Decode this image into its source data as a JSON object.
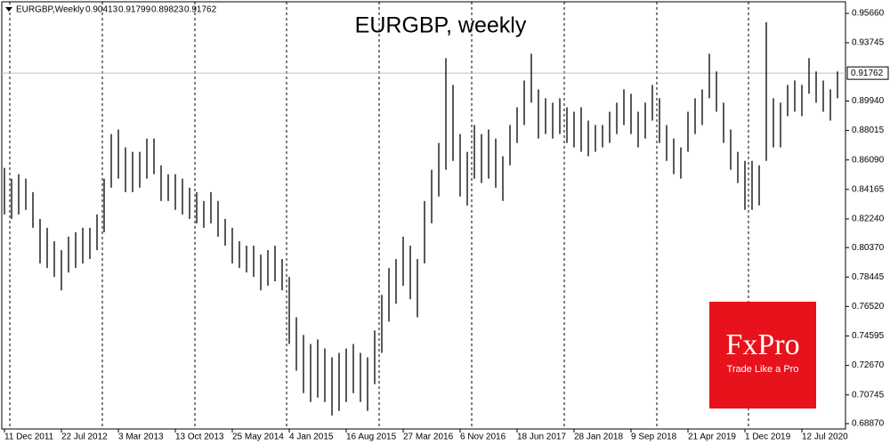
{
  "chart_data": {
    "type": "ohlc",
    "title": "EURGBP, weekly",
    "info": {
      "symbol": "EURGBP,Weekly",
      "open": 0.90413,
      "high": 0.91799,
      "low": 0.89823,
      "close": 0.91762
    },
    "current_price": 0.91762,
    "logo": {
      "name": "FxPro",
      "tagline": "Trade Like a Pro"
    },
    "categories": [
      "11 Dec 2011",
      null,
      null,
      null,
      null,
      null,
      null,
      null,
      "22 Jul 2012",
      null,
      null,
      null,
      null,
      null,
      null,
      null,
      "3 Mar 2013",
      null,
      null,
      null,
      null,
      null,
      null,
      null,
      "13 Oct 2013",
      null,
      null,
      null,
      null,
      null,
      null,
      null,
      "25 May 2014",
      null,
      null,
      null,
      null,
      null,
      null,
      null,
      "4 Jan 2015",
      null,
      null,
      null,
      null,
      null,
      null,
      null,
      "16 Aug 2015",
      null,
      null,
      null,
      null,
      null,
      null,
      null,
      "27 Mar 2016",
      null,
      null,
      null,
      null,
      null,
      null,
      null,
      "6 Nov 2016",
      null,
      null,
      null,
      null,
      null,
      null,
      null,
      "18 Jun 2017",
      null,
      null,
      null,
      null,
      null,
      null,
      null,
      "28 Jan 2018",
      null,
      null,
      null,
      null,
      null,
      null,
      null,
      "9 Sep 2018",
      null,
      null,
      null,
      null,
      null,
      null,
      null,
      "21 Apr 2019",
      null,
      null,
      null,
      null,
      null,
      null,
      null,
      "1 Dec 2019",
      null,
      null,
      null,
      null,
      null,
      null,
      null,
      "12 Jul 2020",
      null,
      null,
      null,
      null,
      null
    ],
    "high": [
      0.8557,
      0.8487,
      0.8516,
      0.8487,
      0.8399,
      0.8224,
      0.8166,
      0.8078,
      0.802,
      0.8108,
      0.8137,
      0.8166,
      0.8166,
      0.8253,
      0.8487,
      0.8778,
      0.8808,
      0.8691,
      0.8662,
      0.8662,
      0.8749,
      0.8749,
      0.8574,
      0.8516,
      0.8516,
      0.8487,
      0.8428,
      0.8399,
      0.8341,
      0.8399,
      0.8341,
      0.8224,
      0.8166,
      0.8078,
      0.8049,
      0.8049,
      0.7991,
      0.802,
      0.8049,
      0.7962,
      0.7845,
      0.7582,
      0.7466,
      0.7407,
      0.7437,
      0.7378,
      0.732,
      0.7349,
      0.7378,
      0.7407,
      0.7349,
      0.732,
      0.7495,
      0.7728,
      0.7903,
      0.7962,
      0.8108,
      0.8049,
      0.7962,
      0.8341,
      0.8545,
      0.872,
      0.9274,
      0.9099,
      0.8778,
      0.8662,
      0.8837,
      0.8778,
      0.8808,
      0.8749,
      0.8633,
      0.8837,
      0.8953,
      0.9128,
      0.9303,
      0.907,
      0.9012,
      0.8983,
      0.9012,
      0.8953,
      0.8924,
      0.8953,
      0.8866,
      0.8837,
      0.8837,
      0.8924,
      0.8983,
      0.907,
      0.9041,
      0.8924,
      0.8983,
      0.9099,
      0.9012,
      0.8837,
      0.8749,
      0.8691,
      0.8924,
      0.9012,
      0.907,
      0.9303,
      0.9187,
      0.8983,
      0.8808,
      0.8662,
      0.8603,
      0.8603,
      0.8574,
      0.9508,
      0.9012,
      0.8983,
      0.9099,
      0.9128,
      0.9099,
      0.9274,
      0.9187,
      0.9128,
      0.907,
      0.9187
    ],
    "low": [
      0.8253,
      0.8224,
      0.8253,
      0.8283,
      0.8166,
      0.7933,
      0.7903,
      0.7845,
      0.7757,
      0.7874,
      0.7903,
      0.7933,
      0.7962,
      0.802,
      0.8137,
      0.8428,
      0.8487,
      0.8399,
      0.8399,
      0.8428,
      0.8487,
      0.8516,
      0.8341,
      0.8341,
      0.8283,
      0.8253,
      0.8224,
      0.8195,
      0.8166,
      0.8195,
      0.8108,
      0.8049,
      0.7933,
      0.7903,
      0.7874,
      0.7845,
      0.7757,
      0.7787,
      0.7816,
      0.7757,
      0.7407,
      0.7232,
      0.7086,
      0.7028,
      0.7057,
      0.7028,
      0.694,
      0.697,
      0.7028,
      0.7086,
      0.7028,
      0.697,
      0.7145,
      0.7349,
      0.7553,
      0.767,
      0.7787,
      0.7699,
      0.7582,
      0.7933,
      0.8195,
      0.837,
      0.8545,
      0.8603,
      0.837,
      0.8312,
      0.8487,
      0.8458,
      0.8487,
      0.8428,
      0.8341,
      0.8574,
      0.872,
      0.8837,
      0.8983,
      0.8749,
      0.8778,
      0.8749,
      0.8778,
      0.872,
      0.8691,
      0.8662,
      0.8633,
      0.8662,
      0.8691,
      0.872,
      0.8778,
      0.8837,
      0.8778,
      0.8691,
      0.8749,
      0.8866,
      0.872,
      0.8603,
      0.8516,
      0.8487,
      0.8662,
      0.8778,
      0.8837,
      0.9012,
      0.8924,
      0.872,
      0.8545,
      0.8458,
      0.8283,
      0.8283,
      0.8312,
      0.8603,
      0.8691,
      0.8691,
      0.8895,
      0.8924,
      0.8895,
      0.9041,
      0.8983,
      0.8924,
      0.8866,
      0.9012
    ],
    "color": "#000000",
    "ylim": [
      0.6852,
      0.9642
    ],
    "yticks": [
      {
        "value": 0.9566,
        "label": "0.95660"
      },
      0.93745,
      {
        "value": 0.8994,
        "label": "0.89940"
      },
      0.88015,
      {
        "value": 0.8609,
        "label": "0.86090"
      },
      0.84165,
      {
        "value": 0.8224,
        "label": "0.82240"
      },
      {
        "value": 0.8037,
        "label": "0.80370"
      },
      0.78445,
      {
        "value": 0.7652,
        "label": "0.76520"
      },
      0.74595,
      {
        "value": 0.7267,
        "label": "0.72670"
      },
      0.70745,
      {
        "value": 0.6887,
        "label": "0.68870"
      }
    ]
  }
}
